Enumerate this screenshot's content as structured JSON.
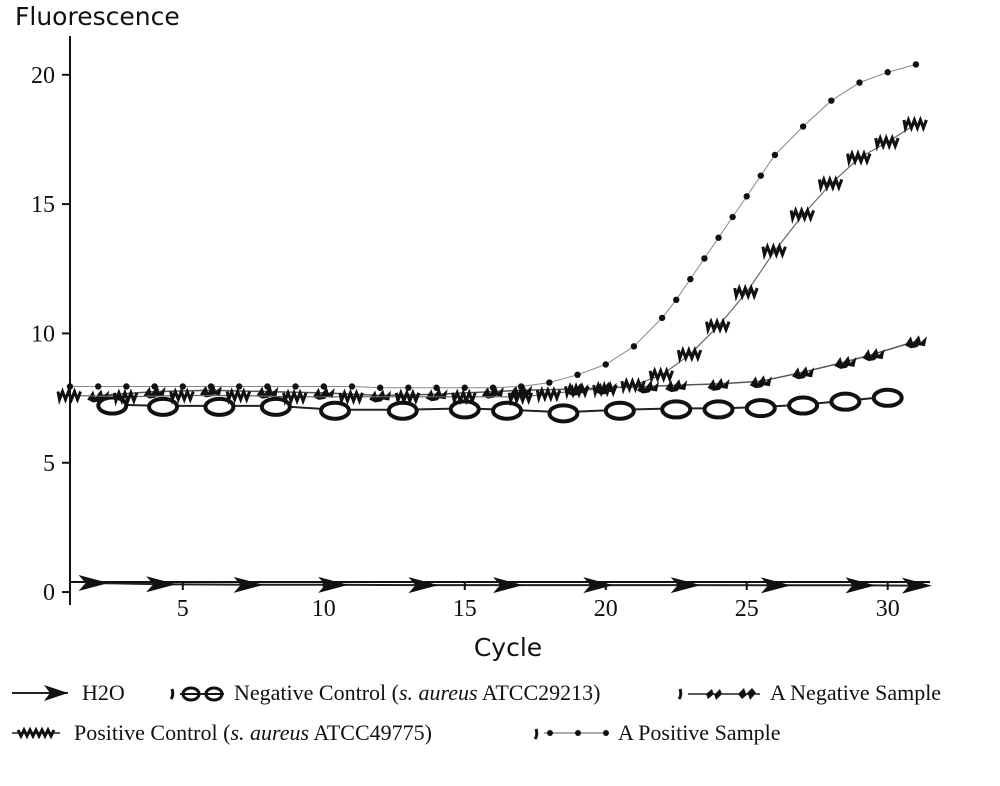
{
  "chart_data": {
    "type": "line",
    "xlabel": "Cycle",
    "ylabel": "Fluorescence",
    "xlim": [
      1,
      31.5
    ],
    "ylim": [
      -0.5,
      21.5
    ],
    "xticks": [
      5,
      10,
      15,
      20,
      25,
      30
    ],
    "yticks": [
      0,
      5,
      10,
      15,
      20
    ],
    "grid": false,
    "legend_position": "bottom",
    "series": [
      {
        "name": "H2O",
        "marker": "arrowhead",
        "x": [
          1.8,
          4.2,
          7.3,
          10.3,
          13.5,
          16.5,
          19.7,
          22.8,
          26.0,
          29.0,
          31.0
        ],
        "y": [
          0.35,
          0.3,
          0.28,
          0.28,
          0.27,
          0.27,
          0.27,
          0.27,
          0.26,
          0.26,
          0.25
        ]
      },
      {
        "name": "Negative Control",
        "name_organism": "s. aureus",
        "name_strain": "ATCC29213",
        "marker": "oval",
        "x": [
          2.5,
          4.3,
          6.3,
          8.3,
          10.4,
          12.8,
          15.0,
          16.5,
          18.5,
          20.5,
          22.5,
          24.0,
          25.5,
          27.0,
          28.5,
          30.0
        ],
        "y": [
          7.25,
          7.2,
          7.2,
          7.2,
          7.05,
          7.05,
          7.1,
          7.05,
          6.95,
          7.05,
          7.1,
          7.1,
          7.15,
          7.25,
          7.4,
          7.55
        ]
      },
      {
        "name": "A Negative Sample",
        "marker": "zigzag",
        "x": [
          2.0,
          4.0,
          6.0,
          8.0,
          10.0,
          12.0,
          14.0,
          16.0,
          17.0,
          19.0,
          20.0,
          21.5,
          22.5,
          24.0,
          25.5,
          27.0,
          28.5,
          29.5,
          31.0
        ],
        "y": [
          7.6,
          7.75,
          7.8,
          7.75,
          7.7,
          7.6,
          7.65,
          7.75,
          7.8,
          7.85,
          7.9,
          7.95,
          8.0,
          8.05,
          8.15,
          8.5,
          8.9,
          9.2,
          9.7
        ]
      },
      {
        "name": "Positive Control",
        "name_organism": "s. aureus",
        "name_strain": "ATCC49775",
        "marker": "zigzag-dense",
        "x": [
          1.0,
          3.0,
          5.0,
          7.0,
          9.0,
          11.0,
          13.0,
          15.0,
          17.0,
          18.0,
          19.0,
          20.0,
          21.0,
          22.0,
          23.0,
          24.0,
          25.0,
          26.0,
          27.0,
          28.0,
          29.0,
          30.0,
          31.0
        ],
        "y": [
          7.6,
          7.55,
          7.6,
          7.6,
          7.55,
          7.55,
          7.55,
          7.55,
          7.55,
          7.65,
          7.8,
          7.85,
          8.0,
          8.4,
          9.2,
          10.3,
          11.6,
          13.2,
          14.6,
          15.8,
          16.8,
          17.4,
          18.1
        ]
      },
      {
        "name": "A Positive Sample",
        "marker": "dot",
        "x": [
          1,
          2,
          3,
          4,
          5,
          6,
          7,
          8,
          9,
          10,
          11,
          12,
          13,
          14,
          15,
          16,
          17,
          18,
          19,
          20,
          21,
          22,
          22.5,
          23,
          23.5,
          24,
          24.5,
          25,
          25.5,
          26,
          27,
          28,
          29,
          30,
          31
        ],
        "y": [
          7.95,
          7.95,
          7.95,
          7.95,
          7.95,
          7.95,
          7.95,
          7.95,
          7.95,
          7.95,
          7.95,
          7.9,
          7.9,
          7.9,
          7.9,
          7.9,
          7.95,
          8.1,
          8.4,
          8.8,
          9.5,
          10.6,
          11.3,
          12.1,
          12.9,
          13.7,
          14.5,
          15.3,
          16.1,
          16.9,
          18.0,
          19.0,
          19.7,
          20.1,
          20.4
        ]
      }
    ]
  }
}
